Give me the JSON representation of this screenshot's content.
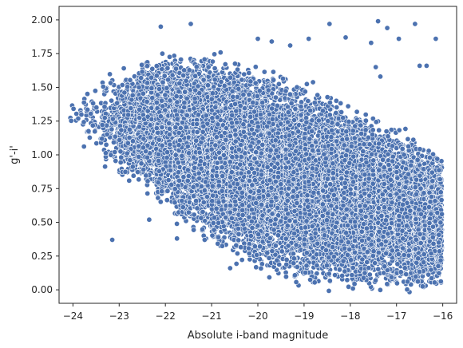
{
  "chart_data": {
    "type": "scatter",
    "title": "",
    "xlabel": "Absolute i-band magnitude",
    "ylabel": "g'-i'",
    "xlim": [
      -24.3,
      -15.7
    ],
    "ylim": [
      -0.1,
      2.1
    ],
    "xticks": [
      -24,
      -23,
      -22,
      -21,
      -20,
      -19,
      -18,
      -17,
      -16
    ],
    "yticks": [
      0.0,
      0.25,
      0.5,
      0.75,
      1.0,
      1.25,
      1.5,
      1.75,
      2.0
    ],
    "xtick_labels": [
      "−24",
      "−23",
      "−22",
      "−21",
      "−20",
      "−19",
      "−18",
      "−17",
      "−16"
    ],
    "ytick_labels": [
      "0.00",
      "0.25",
      "0.50",
      "0.75",
      "1.00",
      "1.25",
      "1.50",
      "1.75",
      "2.00"
    ],
    "grid": false,
    "legend": "none",
    "marker_color": "#4c72b0",
    "density": [
      {
        "x": -23.9,
        "y_low": 1.2,
        "y_high": 1.35,
        "n": 12
      },
      {
        "x": -23.6,
        "y_low": 1.05,
        "y_high": 1.5,
        "n": 40
      },
      {
        "x": -23.2,
        "y_low": 0.9,
        "y_high": 1.6,
        "n": 120
      },
      {
        "x": -22.8,
        "y_low": 0.8,
        "y_high": 1.65,
        "n": 280
      },
      {
        "x": -22.4,
        "y_low": 0.7,
        "y_high": 1.7,
        "n": 480
      },
      {
        "x": -22.0,
        "y_low": 0.6,
        "y_high": 1.75,
        "n": 700
      },
      {
        "x": -21.6,
        "y_low": 0.5,
        "y_high": 1.75,
        "n": 900
      },
      {
        "x": -21.2,
        "y_low": 0.4,
        "y_high": 1.75,
        "n": 1000
      },
      {
        "x": -20.8,
        "y_low": 0.3,
        "y_high": 1.72,
        "n": 1050
      },
      {
        "x": -20.4,
        "y_low": 0.22,
        "y_high": 1.7,
        "n": 1050
      },
      {
        "x": -20.0,
        "y_low": 0.15,
        "y_high": 1.68,
        "n": 1050
      },
      {
        "x": -19.6,
        "y_low": 0.1,
        "y_high": 1.62,
        "n": 1000
      },
      {
        "x": -19.2,
        "y_low": 0.05,
        "y_high": 1.55,
        "n": 1000
      },
      {
        "x": -18.8,
        "y_low": 0.03,
        "y_high": 1.5,
        "n": 950
      },
      {
        "x": -18.4,
        "y_low": 0.02,
        "y_high": 1.45,
        "n": 950
      },
      {
        "x": -18.0,
        "y_low": 0.01,
        "y_high": 1.38,
        "n": 950
      },
      {
        "x": -17.6,
        "y_low": 0.01,
        "y_high": 1.3,
        "n": 950
      },
      {
        "x": -17.2,
        "y_low": 0.01,
        "y_high": 1.22,
        "n": 950
      },
      {
        "x": -16.8,
        "y_low": 0.01,
        "y_high": 1.15,
        "n": 950
      },
      {
        "x": -16.4,
        "y_low": 0.01,
        "y_high": 1.05,
        "n": 950
      },
      {
        "x": -16.1,
        "y_low": 0.02,
        "y_high": 1.0,
        "n": 650
      }
    ],
    "outliers": [
      {
        "x": -23.15,
        "y": 0.37
      },
      {
        "x": -22.35,
        "y": 0.52
      },
      {
        "x": -21.75,
        "y": 0.38
      },
      {
        "x": -21.15,
        "y": 0.37
      },
      {
        "x": -20.6,
        "y": 0.16
      },
      {
        "x": -22.1,
        "y": 1.95
      },
      {
        "x": -21.45,
        "y": 1.97
      },
      {
        "x": -20.0,
        "y": 1.86
      },
      {
        "x": -19.7,
        "y": 1.84
      },
      {
        "x": -19.3,
        "y": 1.81
      },
      {
        "x": -18.9,
        "y": 1.86
      },
      {
        "x": -18.45,
        "y": 1.97
      },
      {
        "x": -18.1,
        "y": 1.87
      },
      {
        "x": -17.55,
        "y": 1.83
      },
      {
        "x": -17.4,
        "y": 1.99
      },
      {
        "x": -17.2,
        "y": 1.94
      },
      {
        "x": -16.95,
        "y": 1.86
      },
      {
        "x": -16.6,
        "y": 1.97
      },
      {
        "x": -16.15,
        "y": 1.86
      },
      {
        "x": -16.5,
        "y": 1.66
      },
      {
        "x": -16.35,
        "y": 1.66
      },
      {
        "x": -17.45,
        "y": 1.65
      },
      {
        "x": -17.35,
        "y": 1.58
      }
    ]
  }
}
